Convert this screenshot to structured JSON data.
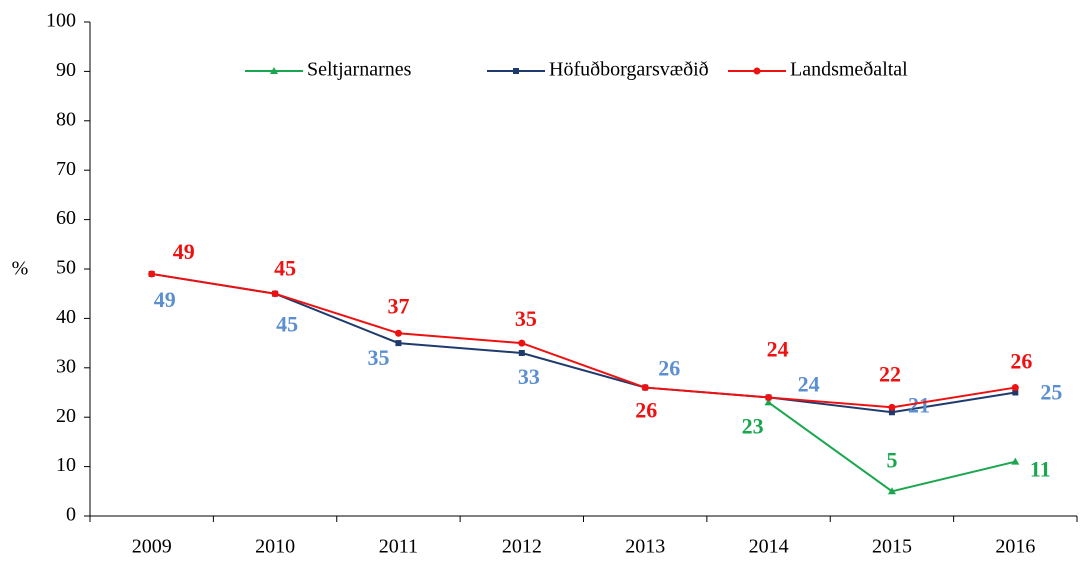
{
  "chart_data": {
    "type": "line",
    "y_label": "%",
    "categories": [
      "2009",
      "2010",
      "2011",
      "2012",
      "2013",
      "2014",
      "2015",
      "2016"
    ],
    "series": [
      {
        "name": "Seltjarnarnes",
        "color": "#1aa64e",
        "label_color": "#1aa64e",
        "marker": "triangle",
        "values": [
          null,
          null,
          null,
          null,
          null,
          23,
          5,
          11
        ]
      },
      {
        "name": "Höfuðborgarsvæðið",
        "color": "#1f3b6e",
        "label_color": "#5b8fd0",
        "marker": "square",
        "values": [
          49,
          45,
          35,
          33,
          26,
          24,
          21,
          25
        ]
      },
      {
        "name": "Landsmeðaltal",
        "color": "#ee1111",
        "label_color": "#ee1111",
        "marker": "circle",
        "values": [
          49,
          45,
          37,
          35,
          26,
          24,
          22,
          26
        ]
      }
    ],
    "ylim": [
      0,
      100
    ],
    "yticks": [
      0,
      10,
      20,
      30,
      40,
      50,
      60,
      70,
      80,
      90,
      100
    ],
    "grid": false,
    "legend": "top"
  }
}
